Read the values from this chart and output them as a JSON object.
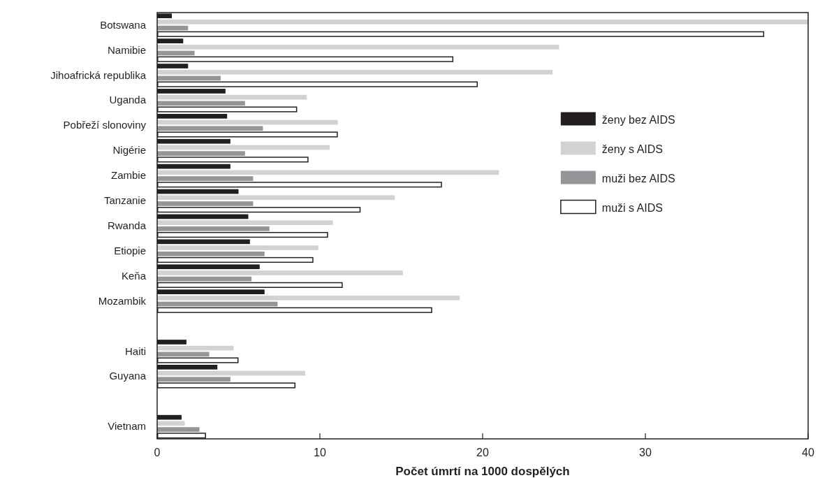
{
  "chart_data": {
    "type": "bar",
    "orientation": "horizontal",
    "xlabel": "Počet úmrtí na 1000 dospělých",
    "categories": [
      "Botswana",
      "Namibie",
      "Jihoafrická republika",
      "Uganda",
      "Pobřeží slonoviny",
      "Nigérie",
      "Zambie",
      "Tanzanie",
      "Rwanda",
      "Etiopie",
      "Keňa",
      "Mozambik",
      null,
      "Haiti",
      "Guyana",
      null,
      "Vietnam"
    ],
    "series": [
      {
        "name": "ženy bez AIDS",
        "color": "#231f20",
        "values": [
          0.9,
          1.6,
          1.9,
          4.2,
          4.3,
          4.5,
          4.5,
          5.0,
          5.6,
          5.7,
          6.3,
          6.6,
          null,
          1.8,
          3.7,
          null,
          1.5
        ]
      },
      {
        "name": "ženy s AIDS",
        "color": "#d1d2d4",
        "values": [
          40,
          24.7,
          24.3,
          9.2,
          11.1,
          10.6,
          21.0,
          14.6,
          10.8,
          9.9,
          15.1,
          18.6,
          null,
          4.7,
          9.1,
          null,
          1.7
        ]
      },
      {
        "name": "muži bez AIDS",
        "color": "#939598",
        "values": [
          1.9,
          2.3,
          3.9,
          5.4,
          6.5,
          5.4,
          5.9,
          5.9,
          6.9,
          6.6,
          5.8,
          7.4,
          null,
          3.2,
          4.5,
          null,
          2.6
        ]
      },
      {
        "name": "muži s AIDS",
        "color": "#ffffff",
        "values": [
          37.3,
          18.2,
          19.7,
          8.6,
          11.1,
          9.3,
          17.5,
          12.5,
          10.5,
          9.6,
          11.4,
          16.9,
          null,
          5.0,
          8.5,
          null,
          3.0
        ]
      }
    ],
    "xlim": [
      0,
      40
    ],
    "xticks": [
      0,
      10,
      20,
      30,
      40
    ],
    "grid": false,
    "legend": "right"
  }
}
